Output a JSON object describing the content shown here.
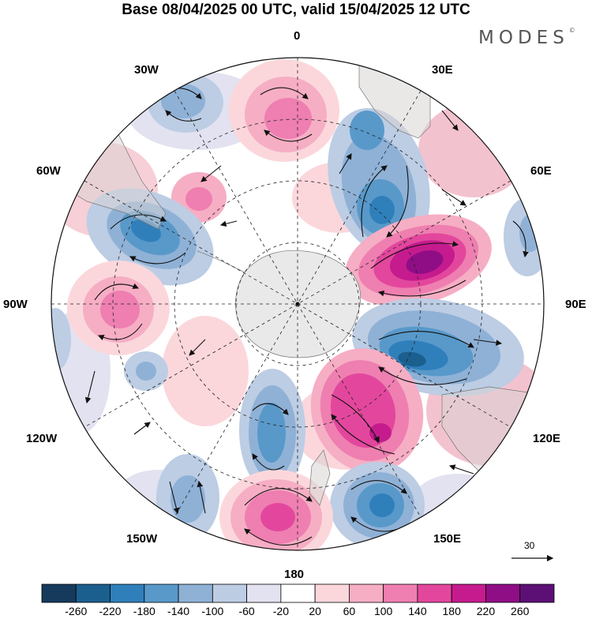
{
  "title": "Base 08/04/2025 00 UTC, valid 15/04/2025 12 UTC",
  "brand": "MODES",
  "brand_mark": "©",
  "longitude_labels": {
    "top": "0",
    "bottom": "180",
    "left": "90W",
    "right": "90E",
    "lon_30w": "30W",
    "lon_60w": "60W",
    "lon_120w": "120W",
    "lon_150w": "150W",
    "lon_30e": "30E",
    "lon_60e": "60E",
    "lon_120e": "120E",
    "lon_150e": "150E"
  },
  "vector_reference": {
    "value": "30"
  },
  "colorbar": {
    "tick_labels": [
      "-260",
      "-220",
      "-180",
      "-140",
      "-100",
      "-60",
      "-20",
      "20",
      "60",
      "100",
      "140",
      "180",
      "220",
      "260"
    ],
    "colors": [
      "#153a5c",
      "#1b5f8e",
      "#2f7fbb",
      "#5899ca",
      "#8fb1d6",
      "#bccde4",
      "#e2e2f0",
      "#ffffff",
      "#fbd7dc",
      "#f6aec4",
      "#ee7fb0",
      "#e3479d",
      "#c51b8e",
      "#8f0e86",
      "#5c1075"
    ]
  },
  "icon": "vector-arrow-icon"
}
